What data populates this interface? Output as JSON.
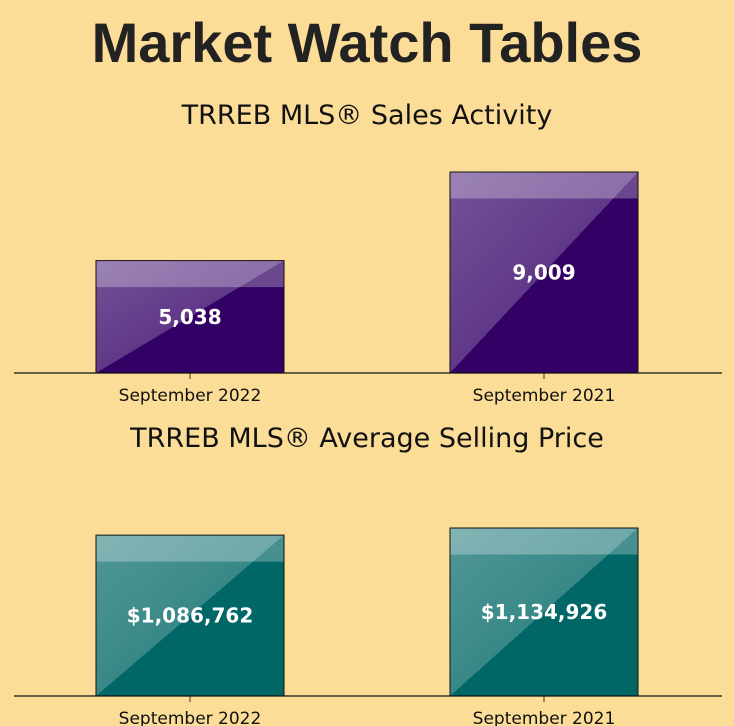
{
  "page": {
    "title": "Market Watch Tables"
  },
  "chart_data": [
    {
      "type": "bar",
      "title": "TRREB MLS® Sales Activity",
      "categories": [
        "September 2022",
        "September 2021"
      ],
      "values": [
        5038,
        9009
      ],
      "value_labels": [
        "5,038",
        "9,009"
      ],
      "ylim": [
        0,
        9009
      ],
      "grid": false,
      "legend": "none",
      "color": "#330066"
    },
    {
      "type": "bar",
      "title": "TRREB MLS® Average Selling Price",
      "categories": [
        "September 2022",
        "September 2021"
      ],
      "values": [
        1086762,
        1134926
      ],
      "value_labels": [
        "$1,086,762",
        "$1,134,926"
      ],
      "ylim": [
        0,
        1134926
      ],
      "grid": false,
      "legend": "none",
      "color": "#006666"
    }
  ]
}
